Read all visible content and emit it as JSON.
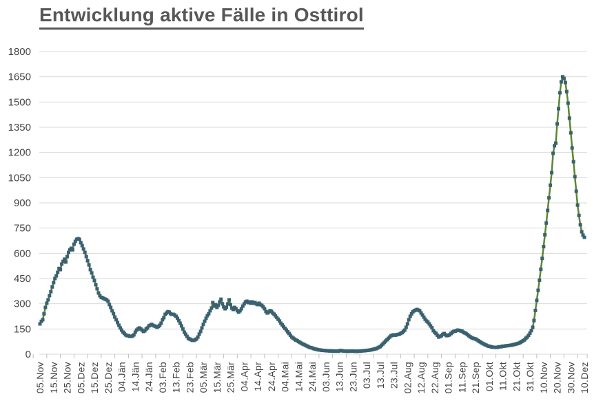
{
  "title": "Entwicklung aktive Fälle in Osttirol",
  "colors": {
    "line": "#5d862e",
    "marker": "#3a6170",
    "grid": "#d9d9d9",
    "tick": "#bdbdbd",
    "label_text": "#454545",
    "title_text": "#575757",
    "background": "#ffffff"
  },
  "chart_data": {
    "type": "line",
    "title": "Entwicklung aktive Fälle in Osttirol",
    "x_frequency": "daily",
    "x_ticks_every_n_points": 10,
    "x_tick_labels": [
      "05.Nov",
      "15.Nov",
      "25.Nov",
      "05.Dez",
      "15.Dez",
      "25.Dez",
      "04.Jän",
      "14.Jän",
      "24.Jän",
      "03.Feb",
      "13.Feb",
      "23.Feb",
      "05.Mär",
      "15.Mär",
      "25.Mär",
      "04.Apr",
      "14.Apr",
      "24.Apr",
      "04.Mai",
      "14.Mai",
      "24.Mai",
      "03.Jun",
      "13.Jun",
      "23.Jun",
      "03.Jul",
      "13.Jul",
      "23.Jul",
      "02.Aug",
      "12.Aug",
      "22.Aug",
      "01.Sep",
      "11.Sep",
      "21.Sep",
      "01.Okt",
      "11.Okt",
      "21.Okt",
      "31.Okt",
      "10.Nov",
      "20.Nov",
      "30.Nov",
      "10.Dez"
    ],
    "y_ticks": [
      0,
      150,
      300,
      450,
      600,
      750,
      900,
      1050,
      1200,
      1350,
      1500,
      1650,
      1800
    ],
    "ylim": [
      0,
      1800
    ],
    "grid": "horizontal",
    "legend": "none",
    "marker_shape": "square",
    "values": [
      180,
      195,
      205,
      240,
      278,
      303,
      323,
      348,
      372,
      400,
      426,
      450,
      466,
      487,
      510,
      503,
      536,
      552,
      565,
      548,
      581,
      605,
      621,
      630,
      621,
      654,
      671,
      683,
      687,
      683,
      663,
      646,
      626,
      605,
      581,
      556,
      531,
      503,
      483,
      458,
      438,
      413,
      389,
      364,
      348,
      338,
      335,
      331,
      327,
      323,
      315,
      295,
      278,
      258,
      241,
      221,
      205,
      188,
      172,
      156,
      143,
      131,
      123,
      115,
      110,
      110,
      106,
      106,
      108,
      115,
      131,
      143,
      150,
      156,
      150,
      143,
      135,
      139,
      150,
      156,
      168,
      172,
      177,
      172,
      168,
      165,
      160,
      165,
      172,
      184,
      205,
      217,
      237,
      245,
      253,
      250,
      241,
      237,
      237,
      233,
      225,
      213,
      200,
      184,
      168,
      150,
      131,
      119,
      106,
      94,
      90,
      86,
      82,
      82,
      86,
      90,
      102,
      119,
      135,
      156,
      177,
      196,
      213,
      229,
      241,
      258,
      274,
      307,
      286,
      295,
      278,
      290,
      311,
      327,
      299,
      282,
      270,
      278,
      299,
      323,
      295,
      274,
      266,
      278,
      270,
      258,
      250,
      258,
      270,
      286,
      299,
      311,
      315,
      307,
      311,
      303,
      311,
      303,
      307,
      299,
      295,
      303,
      295,
      290,
      282,
      270,
      254,
      245,
      250,
      259,
      255,
      245,
      238,
      228,
      218,
      208,
      197,
      184,
      174,
      164,
      154,
      143,
      133,
      123,
      112,
      102,
      95,
      90,
      84,
      80,
      75,
      70,
      65,
      61,
      57,
      53,
      49,
      45,
      41,
      39,
      37,
      33,
      31,
      29,
      27,
      25,
      25,
      23,
      22,
      22,
      21,
      20,
      20,
      19,
      20,
      18,
      18,
      19,
      18,
      18,
      20,
      22,
      20,
      19,
      18,
      18,
      17,
      18,
      18,
      19,
      18,
      18,
      17,
      17,
      18,
      18,
      19,
      20,
      20,
      21,
      22,
      23,
      24,
      25,
      27,
      29,
      31,
      33,
      37,
      41,
      45,
      53,
      61,
      70,
      78,
      86,
      94,
      102,
      110,
      113,
      115,
      113,
      115,
      117,
      119,
      123,
      128,
      135,
      143,
      160,
      180,
      205,
      225,
      240,
      252,
      258,
      262,
      266,
      262,
      258,
      245,
      233,
      220,
      208,
      197,
      191,
      180,
      168,
      157,
      140,
      130,
      123,
      112,
      102,
      106,
      110,
      118,
      123,
      115,
      110,
      113,
      115,
      123,
      131,
      135,
      137,
      140,
      143,
      141,
      139,
      137,
      131,
      127,
      123,
      117,
      110,
      104,
      99,
      95,
      92,
      90,
      86,
      80,
      75,
      70,
      65,
      61,
      57,
      53,
      49,
      47,
      45,
      43,
      41,
      41,
      40,
      41,
      43,
      44,
      45,
      47,
      48,
      49,
      50,
      51,
      52,
      53,
      55,
      57,
      59,
      61,
      63,
      66,
      70,
      75,
      80,
      85,
      95,
      102,
      112,
      125,
      140,
      160,
      200,
      260,
      320,
      380,
      440,
      505,
      570,
      640,
      710,
      780,
      855,
      930,
      1005,
      1080,
      1195,
      1240,
      1255,
      1370,
      1460,
      1555,
      1620,
      1650,
      1640,
      1616,
      1562,
      1493,
      1404,
      1317,
      1227,
      1145,
      1056,
      969,
      887,
      825,
      770,
      728,
      708,
      695
    ]
  }
}
